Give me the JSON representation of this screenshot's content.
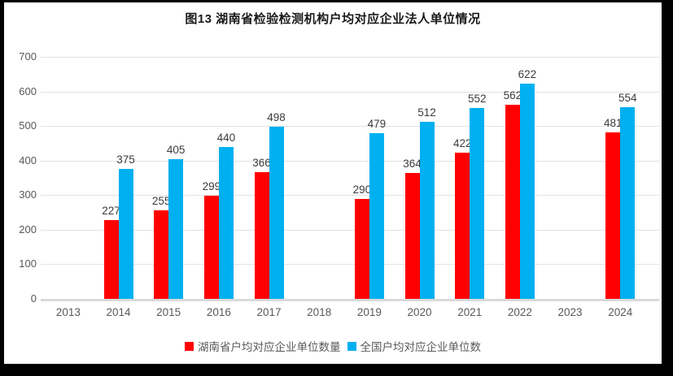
{
  "frame": {
    "border_color": "#000000",
    "background_color": "#ffffff"
  },
  "chart_data": {
    "type": "bar",
    "title": "图13 湖南省检验检测机构户均对应企业法人单位情况",
    "categories": [
      "2013",
      "2014",
      "2015",
      "2016",
      "2017",
      "2018",
      "2019",
      "2020",
      "2021",
      "2022",
      "2023",
      "2024"
    ],
    "series": [
      {
        "name": "湖南省户均对应企业单位数量",
        "color": "#ff0000",
        "values": [
          null,
          227,
          255,
          299,
          366,
          null,
          290,
          364,
          422,
          562,
          null,
          481
        ]
      },
      {
        "name": "全国户均对应企业单位数",
        "color": "#00b0f0",
        "values": [
          null,
          375,
          405,
          440,
          498,
          null,
          479,
          512,
          552,
          622,
          null,
          554
        ]
      }
    ],
    "xlabel": "",
    "ylabel": "",
    "ylim": [
      0,
      700
    ],
    "yticks": [
      0,
      100,
      200,
      300,
      400,
      500,
      600,
      700
    ],
    "grid": "horizontal",
    "data_labels": true,
    "legend_position": "bottom"
  },
  "styles": {
    "gridline_color": "#e2e2e2",
    "axis_line_color": "#d9d9d9",
    "tick_label_color": "#595959",
    "data_label_color": "#3b3b3b",
    "title_color": "#1a1a1a"
  }
}
